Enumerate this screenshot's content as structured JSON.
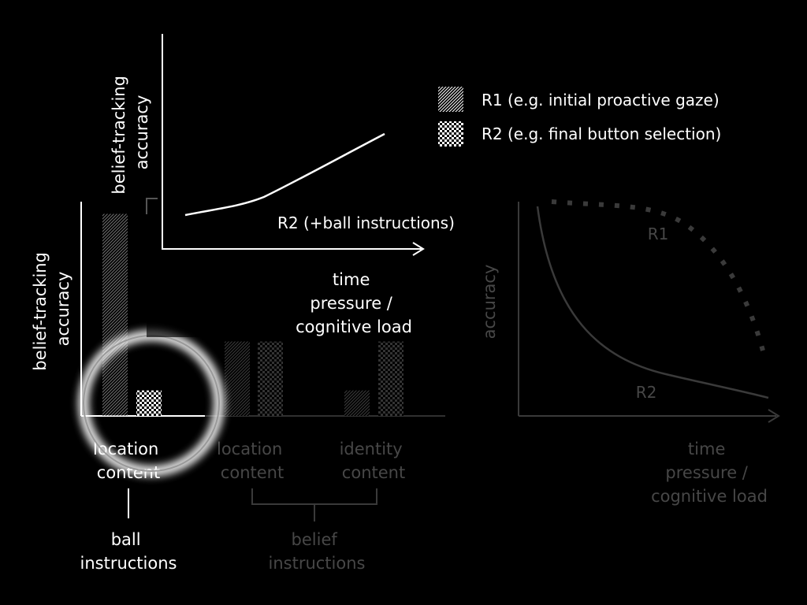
{
  "legend": {
    "items": [
      {
        "label": "R1 (e.g. initial proactive gaze)",
        "pattern": "hatch"
      },
      {
        "label": "R2 (e.g. final button selection)",
        "pattern": "checker"
      }
    ]
  },
  "inset_chart": {
    "ylabel": [
      "belief-tracking",
      "accuracy"
    ],
    "curve_label": "R2 (+ball instructions)",
    "xlabel": [
      "time",
      "pressure /",
      "cognitive load"
    ]
  },
  "bar_chart": {
    "ylabel": [
      "belief-tracking",
      "accuracy"
    ],
    "groups": [
      {
        "label": [
          "location",
          "content"
        ],
        "r1": 0.95,
        "r2": 0.12,
        "highlighted": true
      },
      {
        "label": [
          "location",
          "content"
        ],
        "r1": 0.35,
        "r2": 0.35,
        "highlighted": false
      },
      {
        "label": [
          "identity",
          "content"
        ],
        "r1": 0.12,
        "r2": 0.35,
        "highlighted": false
      }
    ],
    "ball_label": [
      "ball",
      "instructions"
    ],
    "belief_label": [
      "belief",
      "instructions"
    ]
  },
  "right_chart": {
    "ylabel": "accuracy",
    "r1_label": "R1",
    "r2_label": "R2",
    "xlabel": [
      "time",
      "pressure /",
      "cognitive load"
    ]
  },
  "colors": {
    "background": "#000000",
    "foreground": "#ffffff",
    "dim": "#3a3a3a",
    "dim_text": "#474747"
  }
}
